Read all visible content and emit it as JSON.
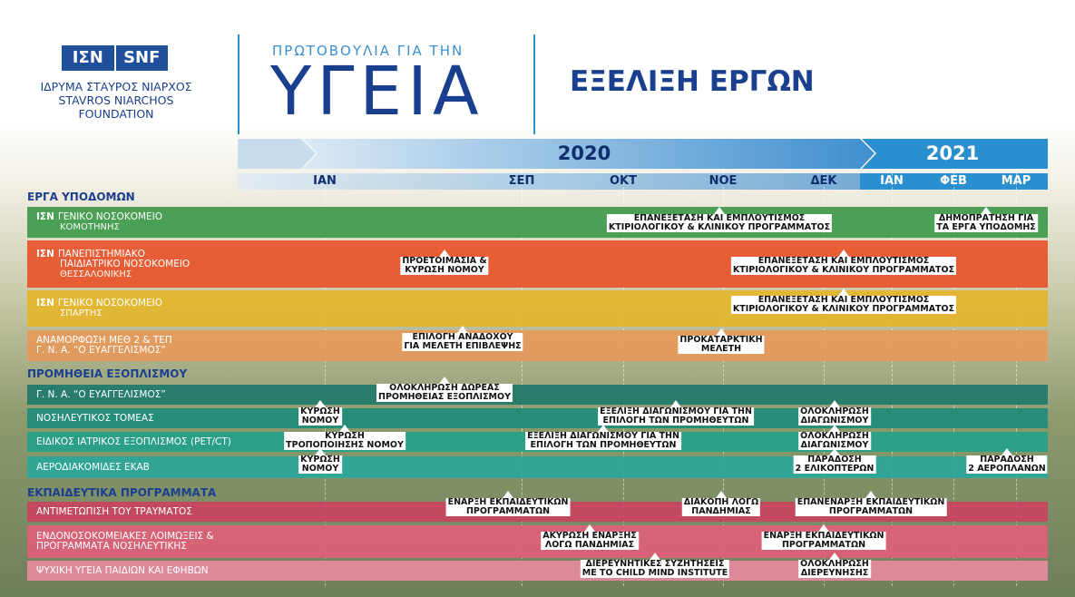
{
  "header": {
    "logo": {
      "left": "ΙΣΝ",
      "right": "SNF",
      "lines": [
        "ΙΔΡΥΜΑ ΣΤΑΥΡΟΣ ΝΙΑΡΧΟΣ",
        "STAVROS NIARCHOS",
        "FOUNDATION"
      ]
    },
    "initiative": {
      "kicker": "ΠΡΩΤΟΒΟΥΛΙΑ ΓΙΑ ΤΗΝ",
      "title": "ΥΓΕΙΑ"
    },
    "title": "ΕΞΕΛΙΞΗ ΕΡΓΩΝ"
  },
  "timeline": {
    "years": [
      "2020",
      "2021"
    ],
    "months": [
      "ΙΑΝ",
      "ΣΕΠ",
      "ΟΚΤ",
      "ΝΟΕ",
      "ΔΕΚ",
      "ΙΑΝ",
      "ΦΕΒ",
      "ΜΑΡ"
    ]
  },
  "sections": [
    {
      "title": "ΕΡΓΑ ΥΠΟΔΟΜΩΝ",
      "rows": [
        {
          "prefix": "ΙΣΝ",
          "lines": [
            "ΓΕΝΙΚΟ ΝΟΣΟΚΟΜΕΙΟ",
            "ΚΟΜΟΤΗΝΗΣ"
          ],
          "milestones": [
            {
              "lines": [
                "ΕΠΑΝΕΞΕΤΑΣΗ ΚΑΙ ΕΜΠΛΟΥΤΙΣΜΟΣ",
                "ΚΤΙΡΙΟΛΟΓΙΚΟΥ & ΚΛΙΝΙΚΟΥ ΠΡΟΓΡΑΜΜΑΤΟΣ"
              ]
            },
            {
              "lines": [
                "ΔΗΜΟΠΡΑΤΗΣΗ ΓΙΑ",
                "ΤΑ ΕΡΓΑ ΥΠΟΔΟΜΗΣ"
              ]
            }
          ]
        },
        {
          "prefix": "ΙΣΝ",
          "lines": [
            "ΠΑΝΕΠΙΣΤΗΜΙΑΚΟ",
            "ΠΑΙΔΙΑΤΡΙΚΟ ΝΟΣΟΚΟΜΕΙΟ",
            "ΘΕΣΣΑΛΟΝΙΚΗΣ"
          ],
          "milestones": [
            {
              "lines": [
                "ΠΡΟΕΤΟΙΜΑΣΙΑ &",
                "ΚΥΡΩΣΗ ΝΟΜΟΥ"
              ]
            },
            {
              "lines": [
                "ΕΠΑΝΕΞΕΤΑΣΗ ΚΑΙ ΕΜΠΛΟΥΤΙΣΜΟΣ",
                "ΚΤΙΡΙΟΛΟΓΙΚΟΥ & ΚΛΙΝΙΚΟΥ ΠΡΟΓΡΑΜΜΑΤΟΣ"
              ]
            }
          ]
        },
        {
          "prefix": "ΙΣΝ",
          "lines": [
            "ΓΕΝΙΚΟ ΝΟΣΟΚΟΜΕΙΟ",
            "ΣΠΑΡΤΗΣ"
          ],
          "milestones": [
            {
              "lines": [
                "ΕΠΑΝΕΞΕΤΑΣΗ ΚΑΙ ΕΜΠΛΟΥΤΙΣΜΟΣ",
                "ΚΤΙΡΙΟΛΟΓΙΚΟΥ & ΚΛΙΝΙΚΟΥ ΠΡΟΓΡΑΜΜΑΤΟΣ"
              ]
            }
          ]
        },
        {
          "lines": [
            "ΑΝΑΜΟΡΦΩΣΗ ΜΕΘ 2 & ΤΕΠ",
            "Γ. Ν. Α. “Ο ΕΥΑΓΓΕΛΙΣΜΟΣ”"
          ],
          "milestones": [
            {
              "lines": [
                "ΕΠΙΛΟΓΗ ΑΝΑΔΟΧΟΥ",
                "ΓΙΑ ΜΕΛΕΤΗ ΕΠΙΒΛΕΨΗΣ"
              ]
            },
            {
              "lines": [
                "ΠΡΟΚΑΤΑΡΚΤΙΚΗ",
                "ΜΕΛΕΤΗ"
              ]
            }
          ]
        }
      ]
    },
    {
      "title": "ΠΡΟΜΗΘΕΙΑ ΕΞΟΠΛΙΣΜΟΥ",
      "rows": [
        {
          "lines": [
            "Γ. Ν. Α. “Ο ΕΥΑΓΓΕΛΙΣΜΟΣ”"
          ],
          "milestones": [
            {
              "lines": [
                "ΟΛΟΚΛΗΡΩΣΗ ΔΩΡΕΑΣ",
                "ΠΡΟΜΗΘΕΙΑΣ ΕΞΟΠΛΙΣΜΟΥ"
              ]
            }
          ]
        },
        {
          "lines": [
            "ΝΟΣΗΛΕΥΤΙΚΟΣ ΤΟΜΕΑΣ"
          ],
          "milestones": [
            {
              "lines": [
                "ΚΥΡΩΣΗ",
                "ΝΟΜΟΥ"
              ]
            },
            {
              "lines": [
                "ΕΞΕΛΙΞΗ ΔΙΑΓΩΝΙΣΜΟΥ ΓΙΑ ΤΗΝ",
                "ΕΠΙΛΟΓΗ ΤΩΝ ΠΡΟΜΗΘΕΥΤΩΝ"
              ]
            },
            {
              "lines": [
                "ΟΛΟΚΛΗΡΩΣΗ",
                "ΔΙΑΓΩΝΙΣΜΟΥ"
              ]
            }
          ]
        },
        {
          "lines": [
            "ΕΙΔΙΚΟΣ ΙΑΤΡΙΚΟΣ ΕΞΟΠΛΙΣΜΟΣ (PET/CT)"
          ],
          "milestones": [
            {
              "lines": [
                "ΚΥΡΩΣΗ",
                "ΤΡΟΠΟΠΟΙΗΣΗΣ ΝΟΜΟΥ"
              ]
            },
            {
              "lines": [
                "ΕΞΕΛΙΞΗ ΔΙΑΓΩΝΙΣΜΟΥ ΓΙΑ ΤΗΝ",
                "ΕΠΙΛΟΓΗ ΤΩΝ ΠΡΟΜΗΘΕΥΤΩΝ"
              ]
            },
            {
              "lines": [
                "ΟΛΟΚΛΗΡΩΣΗ",
                "ΔΙΑΓΩΝΙΣΜΟΥ"
              ]
            }
          ]
        },
        {
          "lines": [
            "ΑΕΡΟΔΙΑΚΟΜΙΔΕΣ ΕΚΑΒ"
          ],
          "milestones": [
            {
              "lines": [
                "ΚΥΡΩΣΗ",
                "ΝΟΜΟΥ"
              ]
            },
            {
              "lines": [
                "ΠΑΡΑΔΟΣΗ",
                "2 ΕΛΙΚΟΠΤΕΡΩΝ"
              ]
            },
            {
              "lines": [
                "ΠΑΡΑΔΟΣΗ",
                "2 ΑΕΡΟΠΛΑΝΩΝ"
              ]
            }
          ]
        }
      ]
    },
    {
      "title": "ΕΚΠΑΙΔΕΥΤΙΚΑ ΠΡΟΓΡΑΜΜΑΤΑ",
      "rows": [
        {
          "lines": [
            "ΑΝΤΙΜΕΤΩΠΙΣΗ ΤΟΥ ΤΡΑΥΜΑΤΟΣ"
          ],
          "milestones": [
            {
              "lines": [
                "ΕΝΑΡΞΗ ΕΚΠΑΙΔΕΥΤΙΚΩΝ",
                "ΠΡΟΓΡΑΜΜΑΤΩΝ"
              ]
            },
            {
              "lines": [
                "ΔΙΑΚΟΠΗ ΛΟΓΩ",
                "ΠΑΝΔΗΜΙΑΣ"
              ]
            },
            {
              "lines": [
                "ΕΠΑΝΕΝΑΡΞΗ ΕΚΠΑΙΔΕΥΤΙΚΩΝ",
                "ΠΡΟΓΡΑΜΜΑΤΩΝ"
              ]
            }
          ]
        },
        {
          "lines": [
            "ΕΝΔΟΝΟΣΟΚΟΜΕΙΑΚΕΣ ΛΟΙΜΩΞΕΙΣ &",
            "ΠΡΟΓΡΑΜΜΑΤΑ ΝΟΣΗΛΕΥΤΙΚΗΣ"
          ],
          "milestones": [
            {
              "lines": [
                "ΑΚΥΡΩΣΗ ΕΝΑΡΞΗΣ",
                "ΛΟΓΩ ΠΑΝΔΗΜΙΑΣ"
              ]
            },
            {
              "lines": [
                "ΕΝΑΡΞΗ ΕΚΠΑΙΔΕΥΤΙΚΩΝ",
                "ΠΡΟΓΡΑΜΜΑΤΩΝ"
              ]
            }
          ]
        },
        {
          "lines": [
            "ΨΥΧΙΚΗ ΥΓΕΙΑ ΠΑΙΔΙΩΝ ΚΑΙ ΕΦΗΒΩΝ"
          ],
          "milestones": [
            {
              "lines": [
                "ΔΙΕΡΕΥΝΗΤΙΚΕΣ ΣΥΖΗΤΗΣΕΙΣ",
                "ΜΕ ΤΟ CHILD MIND INSTITUTE"
              ]
            },
            {
              "lines": [
                "ΟΛΟΚΛΗΡΩΣΗ",
                "ΔΙΕΡΕΥΝΗΣΗΣ"
              ]
            }
          ]
        }
      ]
    }
  ]
}
